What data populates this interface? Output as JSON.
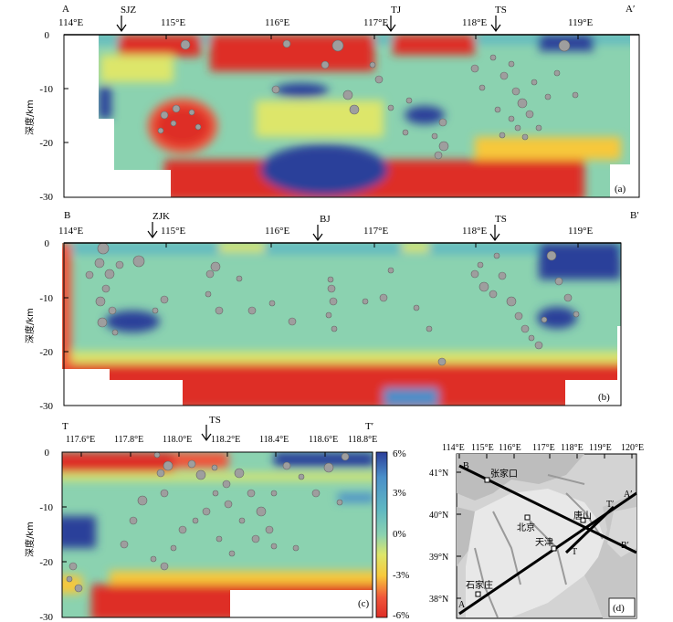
{
  "panels": [
    {
      "id": "a",
      "label": "(a)",
      "start_label": "A",
      "end_label": "A′",
      "ylabel": "深度/km",
      "x_ticks": [
        "114°E",
        "115°E",
        "116°E",
        "117°E",
        "118°E",
        "119°E"
      ],
      "y_ticks": [
        "0",
        "-10",
        "-20",
        "-30"
      ],
      "markers": [
        "SJZ",
        "TJ",
        "TS"
      ]
    },
    {
      "id": "b",
      "label": "(b)",
      "start_label": "B",
      "end_label": "B′",
      "ylabel": "深度/km",
      "x_ticks": [
        "114°E",
        "115°E",
        "116°E",
        "117°E",
        "118°E",
        "119°E"
      ],
      "y_ticks": [
        "0",
        "-10",
        "-20",
        "-30"
      ],
      "markers": [
        "ZJK",
        "BJ",
        "TS"
      ]
    },
    {
      "id": "c",
      "label": "(c)",
      "start_label": "T",
      "end_label": "T′",
      "ylabel": "深度/km",
      "x_ticks": [
        "117.6°E",
        "117.8°E",
        "118.0°E",
        "118.2°E",
        "118.4°E",
        "118.6°E",
        "118.8°E"
      ],
      "y_ticks": [
        "0",
        "-10",
        "-20",
        "-30"
      ],
      "markers": [
        "TS"
      ]
    }
  ],
  "colorbar": {
    "ticks": [
      "6%",
      "3%",
      "0%",
      "-3%",
      "-6%"
    ],
    "colors": [
      "#2c3f9a",
      "#4a8fc9",
      "#5fb8c2",
      "#8bd2b0",
      "#dde66a",
      "#f7c83a",
      "#f0553a",
      "#de2d26"
    ]
  },
  "map": {
    "label": "(d)",
    "x_ticks": [
      "114°E",
      "115°E",
      "116°E",
      "117°E",
      "118°E",
      "119°E",
      "120°E"
    ],
    "y_ticks": [
      "41°N",
      "40°N",
      "39°N",
      "38°N"
    ],
    "cities": [
      "张家口",
      "北京",
      "天津",
      "唐山",
      "石家庄"
    ],
    "line_labels": [
      "A",
      "A′",
      "B",
      "B′",
      "T",
      "T′"
    ]
  }
}
